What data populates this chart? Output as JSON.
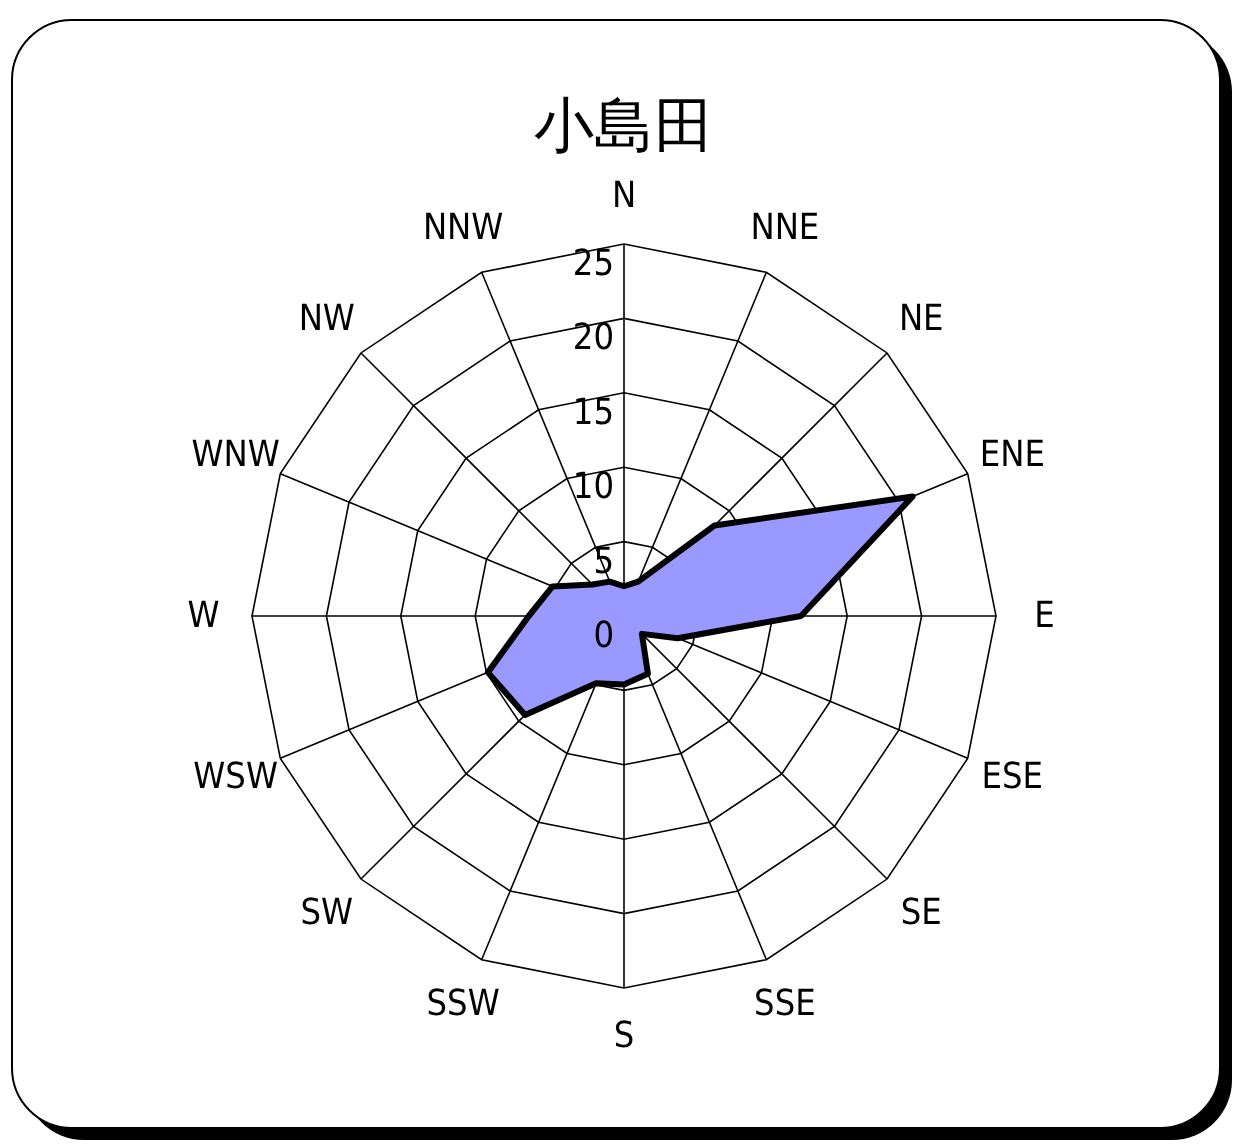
{
  "chart_data": {
    "type": "radar",
    "title": "小島田",
    "categories": [
      "N",
      "NNE",
      "NE",
      "ENE",
      "E",
      "ESE",
      "SE",
      "SSE",
      "S",
      "SSW",
      "SW",
      "WSW",
      "W",
      "WNW",
      "NW",
      "NNW"
    ],
    "series": [
      {
        "color": "#9999ff",
        "values": [
          2,
          2.5,
          8.6,
          21,
          11.9,
          3.9,
          1.7,
          4.2,
          4.6,
          4.9,
          9.4,
          9.9,
          6.4,
          5.2,
          3,
          2.5
        ]
      }
    ],
    "ylim": [
      0,
      25
    ],
    "yticks": [
      0,
      5,
      10,
      15,
      20,
      25
    ],
    "grid": true
  }
}
